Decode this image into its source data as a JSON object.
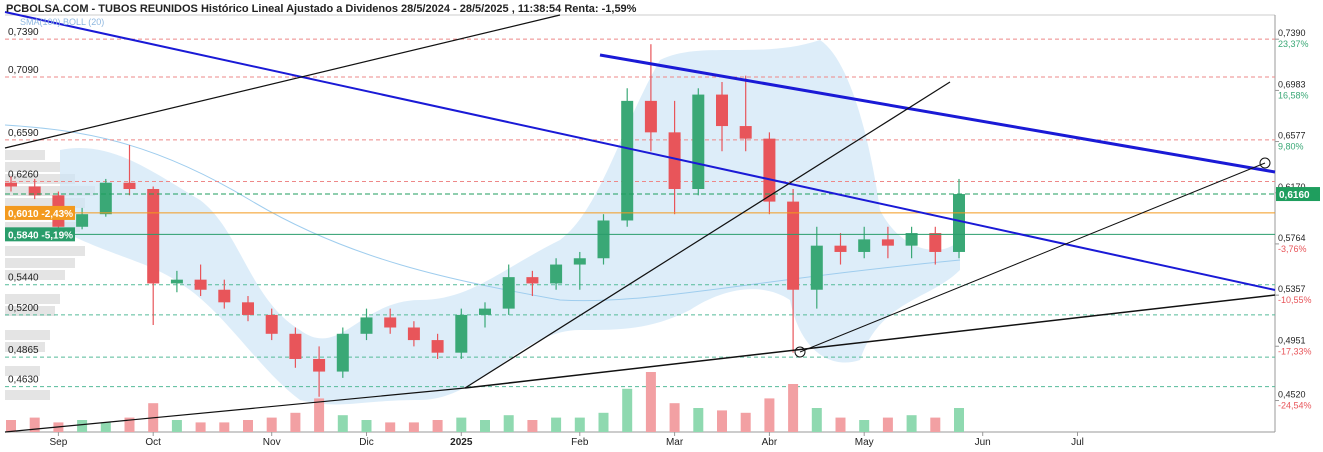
{
  "chart_data": {
    "type": "candlestick",
    "title": "PCBOLSA.COM - TUBOS REUNIDOS Histórico Lineal Ajustado a Dividenos 28/5/2024 - 28/5/2025 , 11:38:54 Renta: -1,59%",
    "indicators": "SMA(100) BOLL (20)",
    "categories": [
      null,
      null,
      "Sep",
      null,
      null,
      null,
      "Oct",
      null,
      null,
      null,
      null,
      "Nov",
      null,
      null,
      null,
      "Dic",
      null,
      null,
      null,
      "2025",
      null,
      null,
      null,
      null,
      "Feb",
      null,
      null,
      null,
      "Mar",
      null,
      null,
      null,
      "Abr",
      null,
      null,
      null,
      "May",
      null,
      null,
      null,
      null,
      "Jun",
      null,
      null,
      null,
      "Jul",
      null,
      null,
      null,
      null,
      null,
      null,
      null
    ],
    "open": [
      0.625,
      0.622,
      0.615,
      0.59,
      0.6,
      0.625,
      0.62,
      0.545,
      0.548,
      0.54,
      0.53,
      0.52,
      0.505,
      0.485,
      0.475,
      0.505,
      0.518,
      0.51,
      0.5,
      0.49,
      0.52,
      0.525,
      0.55,
      0.545,
      0.56,
      0.565,
      0.595,
      0.69,
      0.665,
      0.62,
      0.695,
      0.67,
      0.66,
      0.61,
      0.54,
      0.575,
      0.57,
      0.58,
      0.575,
      0.585,
      0.57,
      null,
      null,
      null,
      null,
      null,
      null,
      null,
      null,
      null,
      null,
      null,
      null
    ],
    "high": [
      0.63,
      0.628,
      0.618,
      0.605,
      0.628,
      0.655,
      0.622,
      0.555,
      0.56,
      0.548,
      0.535,
      0.525,
      0.51,
      0.495,
      0.51,
      0.525,
      0.525,
      0.515,
      0.505,
      0.525,
      0.53,
      0.56,
      0.555,
      0.565,
      0.57,
      0.6,
      0.7,
      0.735,
      0.69,
      0.7,
      0.705,
      0.71,
      0.665,
      0.62,
      0.59,
      0.585,
      0.59,
      0.59,
      0.59,
      0.59,
      0.628,
      null,
      null,
      null,
      null,
      null,
      null,
      null,
      null,
      null,
      null,
      null,
      null
    ],
    "low": [
      0.618,
      0.612,
      0.585,
      0.588,
      0.598,
      0.615,
      0.512,
      0.538,
      0.535,
      0.525,
      0.515,
      0.5,
      0.478,
      0.455,
      0.47,
      0.5,
      0.505,
      0.495,
      0.485,
      0.485,
      0.51,
      0.52,
      0.535,
      0.54,
      0.54,
      0.56,
      0.59,
      0.65,
      0.6,
      0.615,
      0.65,
      0.65,
      0.6,
      0.49,
      0.525,
      0.56,
      0.565,
      0.565,
      0.565,
      0.56,
      0.565,
      null,
      null,
      null,
      null,
      null,
      null,
      null,
      null,
      null,
      null,
      null,
      null
    ],
    "close": [
      0.622,
      0.615,
      0.59,
      0.6,
      0.625,
      0.62,
      0.545,
      0.548,
      0.54,
      0.53,
      0.52,
      0.505,
      0.485,
      0.475,
      0.505,
      0.518,
      0.51,
      0.5,
      0.49,
      0.52,
      0.525,
      0.55,
      0.545,
      0.56,
      0.565,
      0.595,
      0.69,
      0.665,
      0.62,
      0.695,
      0.67,
      0.66,
      0.61,
      0.54,
      0.575,
      0.57,
      0.58,
      0.575,
      0.585,
      0.57,
      0.616,
      null,
      null,
      null,
      null,
      null,
      null,
      null,
      null,
      null,
      null,
      null,
      null
    ],
    "volume": [
      5,
      6,
      4,
      5,
      4,
      6,
      12,
      5,
      4,
      4,
      5,
      6,
      8,
      14,
      7,
      5,
      4,
      4,
      5,
      6,
      5,
      7,
      5,
      6,
      6,
      8,
      18,
      25,
      12,
      10,
      9,
      8,
      14,
      20,
      10,
      6,
      5,
      6,
      7,
      6,
      10,
      null,
      null,
      null,
      null,
      null,
      null,
      null,
      null,
      null,
      null,
      null,
      null
    ],
    "up_color": "#3aa876",
    "down_color": "#e8555a",
    "ylim": [
      0.427,
      0.759
    ],
    "yticks": [
      {
        "value": 0.739,
        "label": "0,7390"
      },
      {
        "value": 0.709,
        "label": "0,7090"
      },
      {
        "value": 0.659,
        "label": "0,6590"
      },
      {
        "value": 0.626,
        "label": "0,6260"
      },
      {
        "value": 0.544,
        "label": "0,5440"
      },
      {
        "value": 0.52,
        "label": "0,5200"
      },
      {
        "value": 0.4865,
        "label": "0,4865"
      },
      {
        "value": 0.463,
        "label": "0,4630"
      }
    ],
    "y2lim": [
      0.427,
      0.759
    ],
    "y2ticks": [
      {
        "value": 0.739,
        "label": "0,7390"
      },
      {
        "value": 0.6983,
        "label": "0,6983"
      },
      {
        "value": 0.6577,
        "label": "0,6577"
      },
      {
        "value": 0.617,
        "label": "0,6170"
      },
      {
        "value": 0.5764,
        "label": "0,5764"
      },
      {
        "value": 0.5357,
        "label": "0,5357"
      },
      {
        "value": 0.4951,
        "label": "0,4951"
      },
      {
        "value": 0.452,
        "label": "0,4520"
      }
    ],
    "y2tick_changes": [
      "23,37%",
      "16,58%",
      "9,80%",
      null,
      "-3,76%",
      "-10,55%",
      "-17,33%",
      "-24,54%"
    ],
    "price_tags": [
      {
        "value": 0.616,
        "label": "0,6160",
        "color": "#1f9e5e",
        "side": "right"
      },
      {
        "value": 0.601,
        "label": "0,6010 -2,43%",
        "color": "#f39a1f",
        "side": "left"
      },
      {
        "value": 0.584,
        "label": "0,5840 -5,19%",
        "color": "#2a9d6b",
        "side": "left"
      }
    ]
  }
}
